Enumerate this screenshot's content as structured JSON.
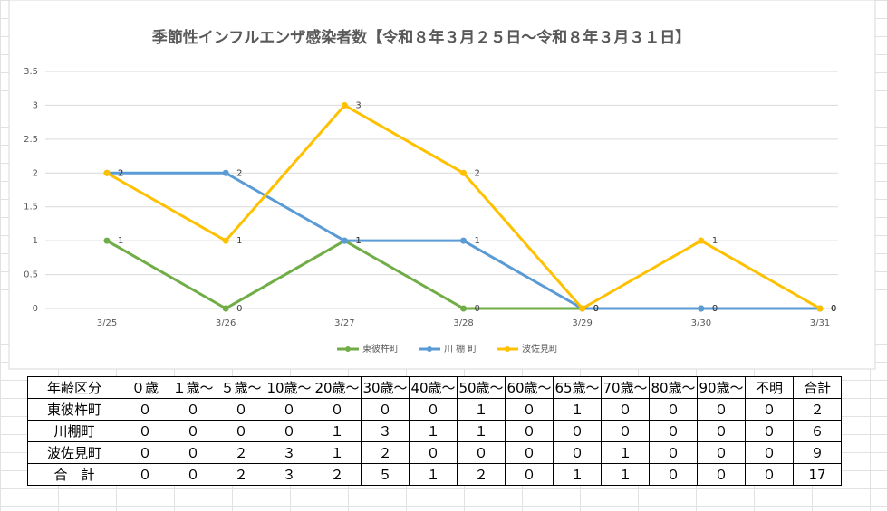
{
  "chart_data": {
    "type": "line",
    "title": "季節性インフルエンザ感染者数【令和８年３月２５日～令和８年３月３１日】",
    "categories": [
      "3/25",
      "3/26",
      "3/27",
      "3/28",
      "3/29",
      "3/30",
      "3/31"
    ],
    "series": [
      {
        "name": "東彼杵町",
        "color": "#70ad47",
        "values": [
          1,
          0,
          1,
          0,
          0,
          0,
          0
        ]
      },
      {
        "name": "川 棚 町",
        "color": "#5b9bd5",
        "values": [
          2,
          2,
          1,
          1,
          0,
          0,
          0
        ]
      },
      {
        "name": "波佐見町",
        "color": "#ffc000",
        "values": [
          2,
          1,
          3,
          2,
          0,
          1,
          0
        ]
      }
    ],
    "ylim": [
      0,
      3.5
    ],
    "yticks": [
      0,
      0.5,
      1,
      1.5,
      2,
      2.5,
      3,
      3.5
    ],
    "grid": true,
    "legend": "bottom"
  },
  "table": {
    "header": [
      "年齢区分",
      "０歳",
      "１歳～",
      "５歳～",
      "10歳～",
      "20歳～",
      "30歳～",
      "40歳～",
      "50歳～",
      "60歳～",
      "65歳～",
      "70歳～",
      "80歳～",
      "90歳～",
      "不明",
      "合計"
    ],
    "rows": [
      [
        "東彼杵町",
        "０",
        "０",
        "０",
        "０",
        "０",
        "０",
        "０",
        "１",
        "０",
        "１",
        "０",
        "０",
        "０",
        "０",
        "２"
      ],
      [
        "川棚町",
        "０",
        "０",
        "０",
        "０",
        "１",
        "３",
        "１",
        "１",
        "０",
        "０",
        "０",
        "０",
        "０",
        "０",
        "６"
      ],
      [
        "波佐見町",
        "０",
        "０",
        "２",
        "３",
        "１",
        "２",
        "０",
        "０",
        "０",
        "０",
        "１",
        "０",
        "０",
        "０",
        "９"
      ],
      [
        "合　計",
        "０",
        "０",
        "２",
        "３",
        "２",
        "５",
        "１",
        "２",
        "０",
        "１",
        "１",
        "０",
        "０",
        "０",
        "17"
      ]
    ]
  }
}
